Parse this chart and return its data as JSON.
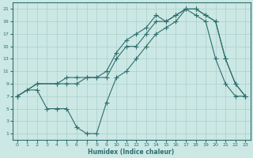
{
  "xlabel": "Humidex (Indice chaleur)",
  "bg_color": "#cce8e4",
  "line_color": "#2d6e6e",
  "grid_color": "#aacfcc",
  "xlim": [
    -0.5,
    23.5
  ],
  "ylim": [
    0,
    22
  ],
  "xticks": [
    0,
    1,
    2,
    3,
    4,
    5,
    6,
    7,
    8,
    9,
    10,
    11,
    12,
    13,
    14,
    15,
    16,
    17,
    18,
    19,
    20,
    21,
    22,
    23
  ],
  "yticks": [
    1,
    3,
    5,
    7,
    9,
    11,
    13,
    15,
    17,
    19,
    21
  ],
  "line1_x": [
    0,
    1,
    2,
    3,
    4,
    5,
    6,
    7,
    8,
    9,
    10,
    11,
    12,
    13,
    14,
    15,
    16,
    17,
    18,
    19,
    20,
    21,
    22,
    23
  ],
  "line1_y": [
    7,
    8,
    8,
    5,
    5,
    5,
    2,
    1,
    1,
    6,
    10,
    11,
    13,
    15,
    17,
    18,
    19,
    21,
    20,
    19,
    13,
    9,
    7,
    7
  ],
  "line2_x": [
    0,
    2,
    4,
    5,
    6,
    7,
    8,
    9,
    10,
    11,
    12,
    13,
    14,
    15,
    16,
    17,
    18,
    19,
    20,
    21,
    22,
    23
  ],
  "line2_y": [
    7,
    9,
    9,
    9,
    9,
    10,
    10,
    10,
    13,
    15,
    15,
    17,
    19,
    19,
    20,
    21,
    21,
    20,
    19,
    13,
    9,
    7
  ],
  "line3_x": [
    0,
    2,
    4,
    5,
    6,
    7,
    8,
    9,
    10,
    11,
    12,
    13,
    14,
    15,
    16,
    17,
    18,
    19,
    20,
    21,
    22,
    23
  ],
  "line3_y": [
    7,
    9,
    9,
    10,
    10,
    10,
    10,
    11,
    14,
    16,
    17,
    18,
    20,
    19,
    20,
    21,
    21,
    20,
    19,
    13,
    9,
    7
  ]
}
